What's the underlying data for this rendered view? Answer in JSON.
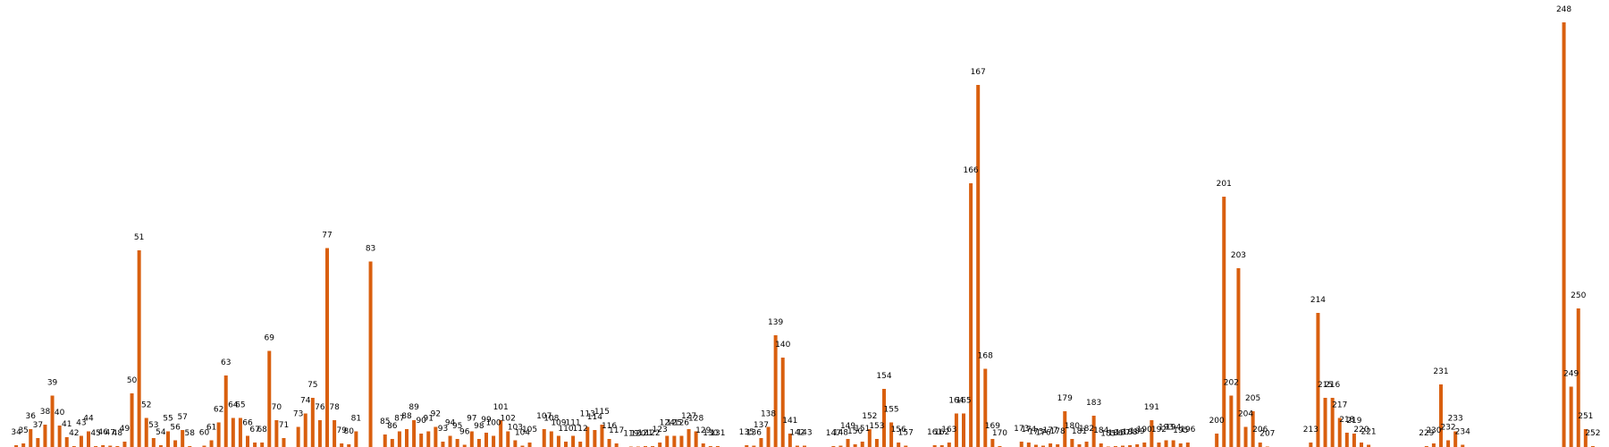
{
  "chart_data": {
    "type": "bar",
    "title": "",
    "xlabel": "",
    "ylabel": "",
    "grid": false,
    "axes_visible": false,
    "x_range": [
      33,
      253
    ],
    "ylim": [
      0,
      100
    ],
    "bar_color": "#d95f0e",
    "points": [
      {
        "x": 34,
        "y": 0.4
      },
      {
        "x": 35,
        "y": 0.8
      },
      {
        "x": 36,
        "y": 4.0
      },
      {
        "x": 37,
        "y": 2.0
      },
      {
        "x": 38,
        "y": 5.0
      },
      {
        "x": 39,
        "y": 11.5
      },
      {
        "x": 40,
        "y": 4.8
      },
      {
        "x": 41,
        "y": 2.2
      },
      {
        "x": 42,
        "y": 0.2
      },
      {
        "x": 43,
        "y": 2.5
      },
      {
        "x": 44,
        "y": 3.5
      },
      {
        "x": 45,
        "y": 0.2
      },
      {
        "x": 46,
        "y": 0.4
      },
      {
        "x": 47,
        "y": 0.3
      },
      {
        "x": 48,
        "y": 0.2
      },
      {
        "x": 49,
        "y": 1.2
      },
      {
        "x": 50,
        "y": 12.0
      },
      {
        "x": 51,
        "y": 44.0
      },
      {
        "x": 52,
        "y": 6.5
      },
      {
        "x": 53,
        "y": 2.0
      },
      {
        "x": 54,
        "y": 0.4
      },
      {
        "x": 55,
        "y": 3.5
      },
      {
        "x": 56,
        "y": 1.5
      },
      {
        "x": 57,
        "y": 3.8
      },
      {
        "x": 58,
        "y": 0.2
      },
      {
        "x": 60,
        "y": 0.3
      },
      {
        "x": 61,
        "y": 1.5
      },
      {
        "x": 62,
        "y": 5.5
      },
      {
        "x": 63,
        "y": 16.0
      },
      {
        "x": 64,
        "y": 6.5
      },
      {
        "x": 65,
        "y": 6.5
      },
      {
        "x": 66,
        "y": 2.5
      },
      {
        "x": 67,
        "y": 1.0
      },
      {
        "x": 68,
        "y": 1.0
      },
      {
        "x": 69,
        "y": 21.5
      },
      {
        "x": 70,
        "y": 6.0
      },
      {
        "x": 71,
        "y": 2.0
      },
      {
        "x": 73,
        "y": 4.5
      },
      {
        "x": 74,
        "y": 7.5
      },
      {
        "x": 75,
        "y": 11.0
      },
      {
        "x": 76,
        "y": 6.0
      },
      {
        "x": 77,
        "y": 44.5
      },
      {
        "x": 78,
        "y": 6.0
      },
      {
        "x": 79,
        "y": 0.8
      },
      {
        "x": 80,
        "y": 0.6
      },
      {
        "x": 81,
        "y": 3.5
      },
      {
        "x": 83,
        "y": 41.5
      },
      {
        "x": 85,
        "y": 2.8
      },
      {
        "x": 86,
        "y": 1.8
      },
      {
        "x": 87,
        "y": 3.5
      },
      {
        "x": 88,
        "y": 4.0
      },
      {
        "x": 89,
        "y": 6.0
      },
      {
        "x": 90,
        "y": 3.0
      },
      {
        "x": 91,
        "y": 3.5
      },
      {
        "x": 92,
        "y": 4.5
      },
      {
        "x": 93,
        "y": 1.2
      },
      {
        "x": 94,
        "y": 2.5
      },
      {
        "x": 95,
        "y": 1.8
      },
      {
        "x": 96,
        "y": 0.5
      },
      {
        "x": 97,
        "y": 3.5
      },
      {
        "x": 98,
        "y": 1.8
      },
      {
        "x": 99,
        "y": 3.2
      },
      {
        "x": 100,
        "y": 2.5
      },
      {
        "x": 101,
        "y": 6.0
      },
      {
        "x": 102,
        "y": 3.5
      },
      {
        "x": 103,
        "y": 1.5
      },
      {
        "x": 104,
        "y": 0.3
      },
      {
        "x": 105,
        "y": 1.0
      },
      {
        "x": 107,
        "y": 4.0
      },
      {
        "x": 108,
        "y": 3.5
      },
      {
        "x": 109,
        "y": 2.5
      },
      {
        "x": 110,
        "y": 1.2
      },
      {
        "x": 111,
        "y": 2.5
      },
      {
        "x": 112,
        "y": 1.2
      },
      {
        "x": 113,
        "y": 4.5
      },
      {
        "x": 114,
        "y": 3.8
      },
      {
        "x": 115,
        "y": 5.0
      },
      {
        "x": 116,
        "y": 1.8
      },
      {
        "x": 117,
        "y": 0.8
      },
      {
        "x": 119,
        "y": 0.1
      },
      {
        "x": 120,
        "y": 0.1
      },
      {
        "x": 121,
        "y": 0.2
      },
      {
        "x": 122,
        "y": 0.2
      },
      {
        "x": 123,
        "y": 1.0
      },
      {
        "x": 124,
        "y": 2.5
      },
      {
        "x": 125,
        "y": 2.5
      },
      {
        "x": 126,
        "y": 2.5
      },
      {
        "x": 127,
        "y": 4.0
      },
      {
        "x": 128,
        "y": 3.5
      },
      {
        "x": 129,
        "y": 0.8
      },
      {
        "x": 130,
        "y": 0.2
      },
      {
        "x": 131,
        "y": 0.2
      },
      {
        "x": 135,
        "y": 0.4
      },
      {
        "x": 136,
        "y": 0.3
      },
      {
        "x": 137,
        "y": 2.0
      },
      {
        "x": 138,
        "y": 4.5
      },
      {
        "x": 139,
        "y": 25.0
      },
      {
        "x": 140,
        "y": 20.0
      },
      {
        "x": 141,
        "y": 3.0
      },
      {
        "x": 142,
        "y": 0.3
      },
      {
        "x": 143,
        "y": 0.3
      },
      {
        "x": 147,
        "y": 0.2
      },
      {
        "x": 148,
        "y": 0.3
      },
      {
        "x": 149,
        "y": 1.8
      },
      {
        "x": 150,
        "y": 0.6
      },
      {
        "x": 151,
        "y": 1.2
      },
      {
        "x": 152,
        "y": 4.0
      },
      {
        "x": 153,
        "y": 1.8
      },
      {
        "x": 154,
        "y": 13.0
      },
      {
        "x": 155,
        "y": 5.5
      },
      {
        "x": 156,
        "y": 1.0
      },
      {
        "x": 157,
        "y": 0.3
      },
      {
        "x": 161,
        "y": 0.4
      },
      {
        "x": 162,
        "y": 0.4
      },
      {
        "x": 163,
        "y": 1.0
      },
      {
        "x": 164,
        "y": 7.5
      },
      {
        "x": 165,
        "y": 7.5
      },
      {
        "x": 166,
        "y": 59.0
      },
      {
        "x": 167,
        "y": 81.0
      },
      {
        "x": 168,
        "y": 17.5
      },
      {
        "x": 169,
        "y": 1.8
      },
      {
        "x": 170,
        "y": 0.2
      },
      {
        "x": 173,
        "y": 1.2
      },
      {
        "x": 174,
        "y": 1.0
      },
      {
        "x": 175,
        "y": 0.5
      },
      {
        "x": 176,
        "y": 0.3
      },
      {
        "x": 177,
        "y": 0.8
      },
      {
        "x": 178,
        "y": 0.6
      },
      {
        "x": 179,
        "y": 8.0
      },
      {
        "x": 180,
        "y": 1.8
      },
      {
        "x": 181,
        "y": 0.6
      },
      {
        "x": 182,
        "y": 1.2
      },
      {
        "x": 183,
        "y": 7.0
      },
      {
        "x": 184,
        "y": 0.8
      },
      {
        "x": 185,
        "y": 0.1
      },
      {
        "x": 186,
        "y": 0.2
      },
      {
        "x": 187,
        "y": 0.3
      },
      {
        "x": 188,
        "y": 0.4
      },
      {
        "x": 189,
        "y": 0.6
      },
      {
        "x": 190,
        "y": 1.0
      },
      {
        "x": 191,
        "y": 6.0
      },
      {
        "x": 192,
        "y": 1.0
      },
      {
        "x": 193,
        "y": 1.5
      },
      {
        "x": 194,
        "y": 1.5
      },
      {
        "x": 195,
        "y": 0.8
      },
      {
        "x": 196,
        "y": 1.0
      },
      {
        "x": 200,
        "y": 3.0
      },
      {
        "x": 201,
        "y": 56.0
      },
      {
        "x": 202,
        "y": 11.5
      },
      {
        "x": 203,
        "y": 40.0
      },
      {
        "x": 204,
        "y": 4.5
      },
      {
        "x": 205,
        "y": 8.0
      },
      {
        "x": 206,
        "y": 1.0
      },
      {
        "x": 207,
        "y": 0.1
      },
      {
        "x": 213,
        "y": 1.0
      },
      {
        "x": 214,
        "y": 30.0
      },
      {
        "x": 215,
        "y": 11.0
      },
      {
        "x": 216,
        "y": 11.0
      },
      {
        "x": 217,
        "y": 6.5
      },
      {
        "x": 218,
        "y": 3.2
      },
      {
        "x": 219,
        "y": 3.0
      },
      {
        "x": 220,
        "y": 1.0
      },
      {
        "x": 221,
        "y": 0.5
      },
      {
        "x": 229,
        "y": 0.2
      },
      {
        "x": 230,
        "y": 0.8
      },
      {
        "x": 231,
        "y": 14.0
      },
      {
        "x": 232,
        "y": 1.5
      },
      {
        "x": 233,
        "y": 3.5
      },
      {
        "x": 234,
        "y": 0.5
      },
      {
        "x": 248,
        "y": 95.0
      },
      {
        "x": 249,
        "y": 13.5
      },
      {
        "x": 250,
        "y": 31.0
      },
      {
        "x": 251,
        "y": 4.0
      },
      {
        "x": 252,
        "y": 0.2
      }
    ]
  }
}
